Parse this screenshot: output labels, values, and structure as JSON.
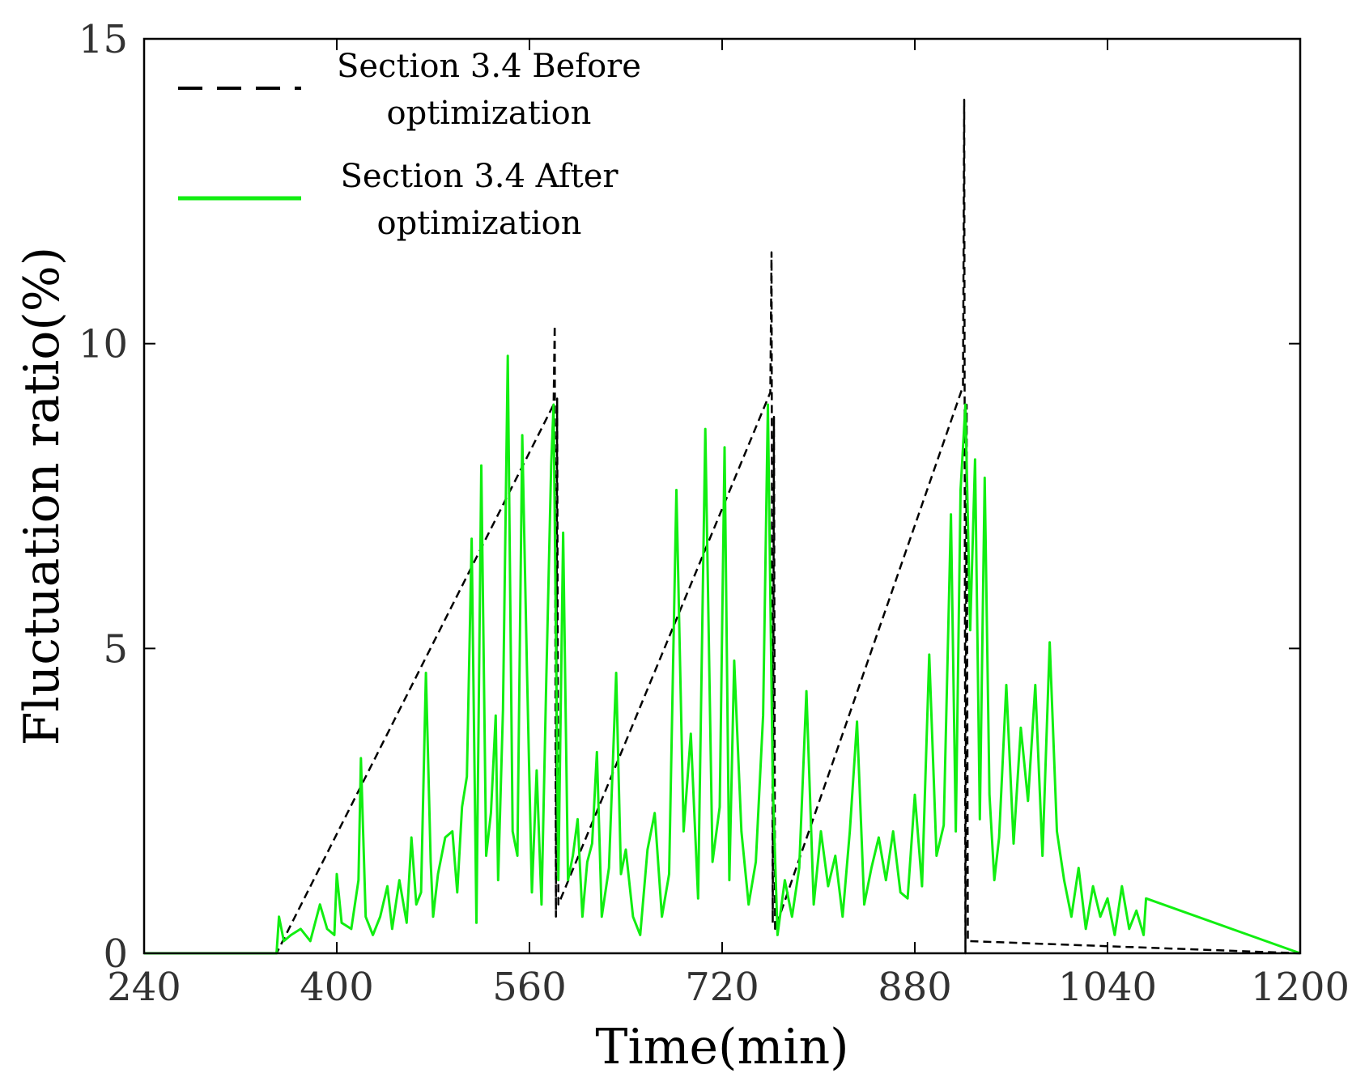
{
  "chart_data": {
    "type": "line",
    "title": "",
    "xlabel": "Time(min)",
    "ylabel": "Fluctuation ratio(%)",
    "xlim": [
      240,
      1200
    ],
    "ylim": [
      0,
      15
    ],
    "xticks": [
      "240",
      "400",
      "560",
      "720",
      "880",
      "1040",
      "1200"
    ],
    "yticks": [
      "0",
      "5",
      "10",
      "15"
    ],
    "legend_position": "top-left",
    "series": [
      {
        "name": "Section 3.4 Before optimization",
        "legend_lines": [
          "Section 3.4 Before",
          "optimization"
        ],
        "color": "#000000",
        "style": "dashed",
        "x": [
          240,
          350,
          580,
          581,
          582,
          583,
          584,
          760,
          761,
          762,
          763,
          764,
          920,
          921,
          922,
          923,
          924,
          1200
        ],
        "y": [
          0,
          0,
          9.0,
          10.3,
          0.6,
          9.1,
          0.8,
          9.2,
          11.5,
          0.5,
          8.8,
          0.4,
          9.3,
          14.0,
          0.0,
          9.0,
          0.2,
          0
        ]
      },
      {
        "name": "Section 3.4 After optimization",
        "legend_lines": [
          "Section 3.4 After",
          "optimization"
        ],
        "color": "#11ee11",
        "style": "solid",
        "x": [
          240,
          350,
          352,
          356,
          362,
          370,
          378,
          386,
          392,
          398,
          400,
          404,
          412,
          418,
          420,
          424,
          430,
          436,
          442,
          446,
          452,
          458,
          462,
          466,
          470,
          474,
          478,
          480,
          484,
          490,
          496,
          500,
          504,
          508,
          512,
          516,
          520,
          524,
          528,
          532,
          534,
          538,
          542,
          546,
          550,
          554,
          558,
          562,
          566,
          570,
          574,
          578,
          580,
          584,
          588,
          592,
          596,
          600,
          604,
          608,
          612,
          616,
          620,
          626,
          632,
          636,
          640,
          646,
          652,
          658,
          664,
          670,
          676,
          682,
          688,
          694,
          700,
          706,
          712,
          718,
          722,
          726,
          730,
          736,
          742,
          748,
          754,
          758,
          762,
          766,
          772,
          778,
          784,
          790,
          796,
          802,
          808,
          814,
          820,
          826,
          832,
          838,
          844,
          850,
          856,
          862,
          868,
          874,
          880,
          886,
          892,
          898,
          904,
          910,
          914,
          918,
          922,
          926,
          930,
          934,
          938,
          942,
          946,
          950,
          956,
          962,
          968,
          974,
          980,
          986,
          992,
          998,
          1004,
          1010,
          1016,
          1022,
          1028,
          1034,
          1040,
          1046,
          1052,
          1058,
          1064,
          1070,
          1072,
          1200
        ],
        "y": [
          0,
          0,
          0.6,
          0.2,
          0.3,
          0.4,
          0.2,
          0.8,
          0.4,
          0.3,
          1.3,
          0.5,
          0.4,
          1.2,
          3.2,
          0.6,
          0.3,
          0.6,
          1.1,
          0.4,
          1.2,
          0.5,
          1.9,
          0.8,
          1.0,
          4.6,
          1.5,
          0.6,
          1.3,
          1.9,
          2.0,
          1.0,
          2.4,
          2.9,
          6.8,
          0.5,
          8.0,
          1.6,
          2.3,
          3.9,
          1.2,
          4.0,
          9.8,
          2.0,
          1.6,
          8.5,
          4.6,
          1.0,
          3.0,
          0.8,
          4.5,
          8.0,
          9.0,
          1.2,
          6.9,
          1.2,
          1.6,
          2.2,
          0.6,
          1.5,
          1.8,
          3.3,
          0.6,
          1.4,
          4.6,
          1.3,
          1.7,
          0.6,
          0.3,
          1.7,
          2.3,
          0.6,
          1.3,
          7.6,
          2.0,
          3.6,
          0.9,
          8.6,
          1.5,
          2.4,
          8.3,
          1.2,
          4.8,
          2.0,
          0.8,
          1.5,
          3.9,
          9.0,
          2.8,
          0.3,
          1.2,
          0.6,
          1.4,
          4.3,
          0.8,
          2.0,
          1.1,
          1.6,
          0.6,
          2.0,
          3.8,
          0.8,
          1.4,
          1.9,
          1.2,
          2.0,
          1.0,
          0.9,
          2.6,
          1.1,
          4.9,
          1.6,
          2.1,
          7.2,
          2.0,
          7.6,
          9.0,
          5.3,
          8.1,
          2.2,
          7.8,
          2.6,
          1.2,
          1.9,
          4.4,
          1.8,
          3.7,
          2.5,
          4.4,
          1.6,
          5.1,
          2.0,
          1.2,
          0.6,
          1.4,
          0.4,
          1.1,
          0.6,
          0.9,
          0.3,
          1.1,
          0.4,
          0.7,
          0.3,
          0.9,
          0
        ]
      }
    ]
  }
}
